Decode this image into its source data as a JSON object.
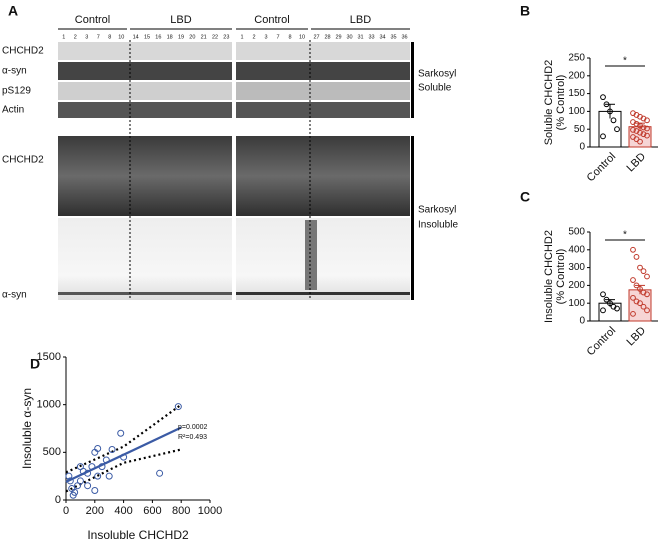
{
  "panel_a": {
    "letter": "A",
    "groups": [
      "Control",
      "LBD",
      "Control",
      "LBD"
    ],
    "lanes": [
      [
        "1",
        "2",
        "3",
        "7",
        "8",
        "10"
      ],
      [
        "14",
        "15",
        "16",
        "18",
        "19",
        "20",
        "21",
        "22",
        "23"
      ],
      [
        "1",
        "2",
        "3",
        "7",
        "8",
        "10"
      ],
      [
        "27",
        "28",
        "29",
        "30",
        "31",
        "33",
        "34",
        "35",
        "36"
      ]
    ],
    "rows": [
      "CHCHD2",
      "α-syn",
      "pS129",
      "Actin"
    ],
    "soluble_label": [
      "Sarkosyl",
      "Soluble"
    ],
    "insoluble_rows": [
      "CHCHD2",
      "α-syn"
    ],
    "insoluble_label": [
      "Sarkosyl",
      "Insoluble"
    ]
  },
  "chart_data": [
    {
      "type": "dot_bar",
      "panel": "B",
      "ylabel": [
        "Soluble CHCHD2",
        "(% Control)"
      ],
      "categories": [
        "Control",
        "LBD"
      ],
      "means": [
        100,
        57
      ],
      "errors": [
        20,
        10
      ],
      "points": [
        [
          140,
          120,
          100,
          75,
          50,
          30
        ],
        [
          95,
          90,
          85,
          80,
          75,
          70,
          65,
          60,
          55,
          52,
          48,
          45,
          40,
          36,
          32,
          28,
          22,
          15
        ]
      ],
      "colors": [
        "#000000",
        "#c0392b"
      ],
      "fills": [
        "#ffffff",
        "#f6d5d5"
      ],
      "ylim": [
        0,
        250
      ],
      "yticks": [
        0,
        50,
        100,
        150,
        200,
        250
      ],
      "annotation": "*"
    },
    {
      "type": "dot_bar",
      "panel": "C",
      "ylabel": [
        "Insoluble CHCHD2",
        "(% Control)"
      ],
      "categories": [
        "Control",
        "LBD"
      ],
      "means": [
        100,
        175
      ],
      "errors": [
        20,
        25
      ],
      "points": [
        [
          150,
          120,
          100,
          80,
          70,
          60
        ],
        [
          400,
          360,
          300,
          280,
          250,
          230,
          200,
          180,
          160,
          150,
          130,
          110,
          100,
          80,
          60,
          40
        ]
      ],
      "colors": [
        "#000000",
        "#c0392b"
      ],
      "fills": [
        "#ffffff",
        "#f6d5d5"
      ],
      "ylim": [
        0,
        500
      ],
      "yticks": [
        0,
        100,
        200,
        300,
        400,
        500
      ],
      "annotation": "*"
    },
    {
      "type": "scatter",
      "panel": "D",
      "xlabel": "Insoluble CHCHD2",
      "ylabel": "Insoluble α-syn",
      "x": [
        780,
        650,
        380,
        320,
        280,
        220,
        200,
        250,
        180,
        150,
        120,
        100,
        80,
        60,
        40,
        30,
        20,
        50,
        200,
        150,
        300,
        220,
        100,
        400
      ],
      "y": [
        980,
        280,
        700,
        530,
        420,
        540,
        500,
        350,
        350,
        280,
        300,
        200,
        150,
        80,
        120,
        200,
        250,
        50,
        100,
        150,
        250,
        250,
        350,
        450
      ],
      "color": "#3b5ba5",
      "fit": {
        "x": [
          0,
          800
        ],
        "y": [
          190,
          760
        ]
      },
      "band": {
        "x": [
          0,
          400,
          800
        ],
        "upper": [
          290,
          560,
          1000
        ],
        "lower": [
          90,
          390,
          530
        ]
      },
      "annotations": [
        "p=0.0002",
        "R²=0.493"
      ],
      "xlim": [
        0,
        1000
      ],
      "xticks": [
        0,
        200,
        400,
        600,
        800,
        1000
      ],
      "ylim": [
        0,
        1500
      ],
      "yticks": [
        0,
        500,
        1000,
        1500
      ]
    }
  ]
}
